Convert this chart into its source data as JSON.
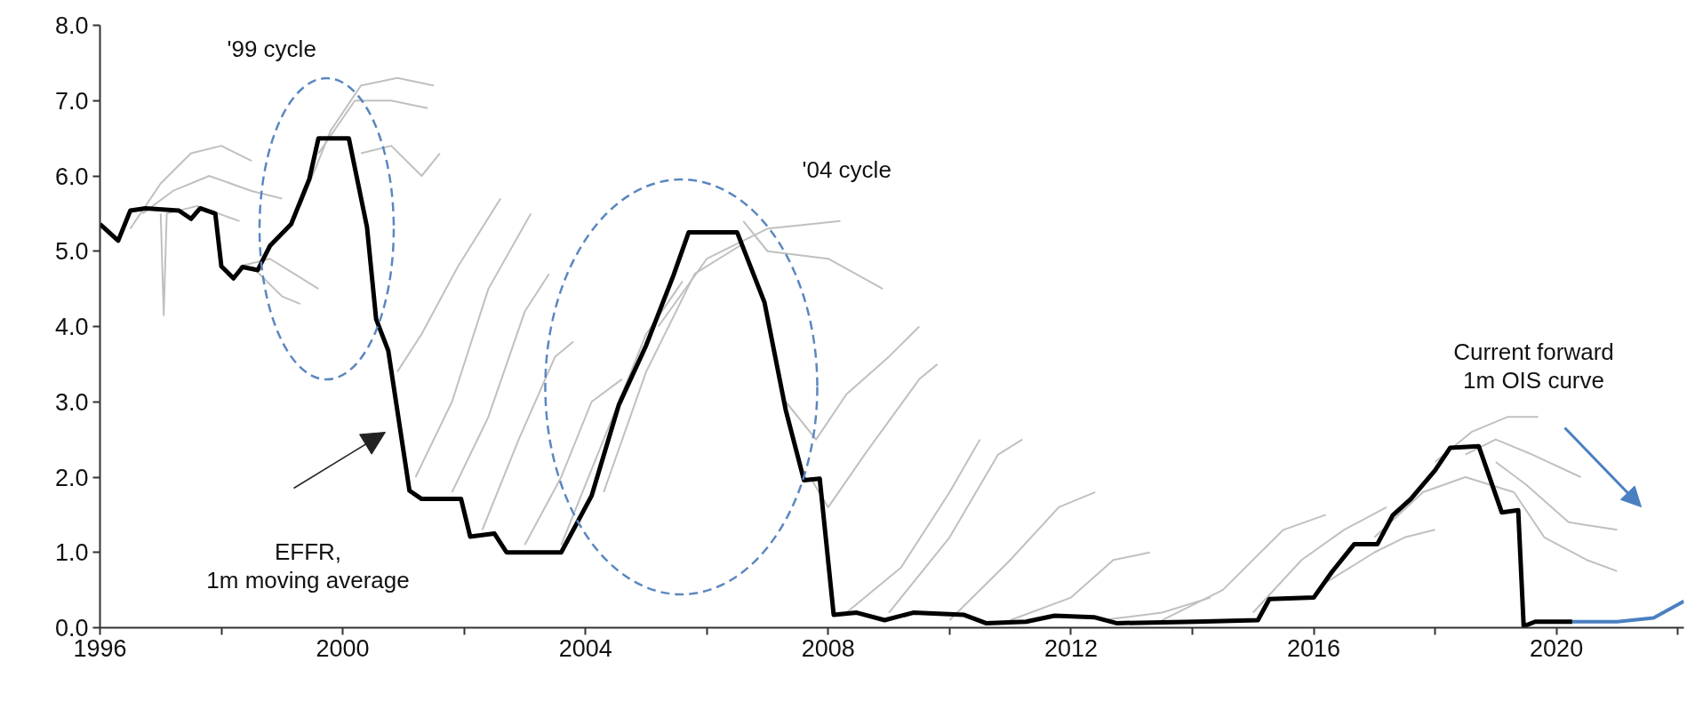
{
  "chart_data": {
    "type": "line",
    "xlim": [
      1996,
      2022.1
    ],
    "ylim": [
      0,
      8
    ],
    "xticks": [
      1996,
      {
        "value": 1998,
        "label": null
      },
      2000,
      {
        "value": 2002,
        "label": null
      },
      2004,
      {
        "value": 2006,
        "label": null
      },
      2008,
      {
        "value": 2010,
        "label": null
      },
      2012,
      {
        "value": 2014,
        "label": null
      },
      2016,
      {
        "value": 2018,
        "label": null
      },
      2020,
      {
        "value": 2022,
        "label": null
      }
    ],
    "yticks": [
      {
        "value": 0,
        "label": "0.0"
      },
      {
        "value": 1,
        "label": "1.0"
      },
      {
        "value": 2,
        "label": "2.0"
      },
      {
        "value": 3,
        "label": "3.0"
      },
      {
        "value": 4,
        "label": "4.0"
      },
      {
        "value": 5,
        "label": "5.0"
      },
      {
        "value": 6,
        "label": "6.0"
      },
      {
        "value": 7,
        "label": "7.0"
      },
      {
        "value": 8,
        "label": "8.0"
      }
    ],
    "grid": false,
    "line_style": "solid",
    "marker": "none",
    "annotations": [
      "'99 cycle",
      "'04 cycle",
      "EFFR,\n1m moving average",
      "Current forward\n1m OIS curve"
    ],
    "series": [
      {
        "color": "#c0c0c0",
        "x": [
          1996.5,
          1997,
          1997.5,
          1998,
          1998.5
        ],
        "values": [
          5.3,
          5.9,
          6.3,
          6.4,
          6.2
        ]
      },
      {
        "color": "#c0c0c0",
        "x": [
          1996.7,
          1997.2,
          1997.8,
          1998.5,
          1999
        ],
        "values": [
          5.5,
          5.8,
          6.0,
          5.8,
          5.7
        ]
      },
      {
        "color": "#c0c0c0",
        "x": [
          1997.0,
          1997.05,
          1997.1,
          1997.6,
          1998.3
        ],
        "values": [
          5.5,
          4.15,
          5.5,
          5.6,
          5.4
        ]
      },
      {
        "color": "#c0c0c0",
        "x": [
          1998.3,
          1998.8,
          1999.2,
          1999.6
        ],
        "values": [
          4.8,
          4.9,
          4.7,
          4.5
        ]
      },
      {
        "color": "#c0c0c0",
        "x": [
          1998.5,
          1999,
          1999.3
        ],
        "values": [
          4.8,
          4.4,
          4.3
        ]
      },
      {
        "color": "#c0c0c0",
        "x": [
          1999.3,
          1999.8,
          2000.3,
          2000.9,
          2001.5
        ],
        "values": [
          5.6,
          6.6,
          7.2,
          7.3,
          7.2
        ]
      },
      {
        "color": "#c0c0c0",
        "x": [
          1999.6,
          2000.2,
          2000.8,
          2001.4
        ],
        "values": [
          6.3,
          7.0,
          7.0,
          6.9
        ]
      },
      {
        "color": "#c0c0c0",
        "x": [
          2000.3,
          2000.8,
          2001.3,
          2001.6
        ],
        "values": [
          6.3,
          6.4,
          6.0,
          6.3
        ]
      },
      {
        "color": "#c0c0c0",
        "x": [
          2000.9,
          2001.3,
          2001.9,
          2002.6
        ],
        "values": [
          3.4,
          3.9,
          4.8,
          5.7
        ]
      },
      {
        "color": "#c0c0c0",
        "x": [
          2001.2,
          2001.8,
          2002.4,
          2003.1
        ],
        "values": [
          2.0,
          3.0,
          4.5,
          5.5
        ]
      },
      {
        "color": "#c0c0c0",
        "x": [
          2001.8,
          2002.4,
          2003.0,
          2003.4
        ],
        "values": [
          1.8,
          2.8,
          4.2,
          4.7
        ]
      },
      {
        "color": "#c0c0c0",
        "x": [
          2002.3,
          2002.9,
          2003.5,
          2003.8
        ],
        "values": [
          1.3,
          2.5,
          3.6,
          3.8
        ]
      },
      {
        "color": "#c0c0c0",
        "x": [
          2003.0,
          2003.6,
          2004.1,
          2004.6
        ],
        "values": [
          1.1,
          2.0,
          3.0,
          3.3
        ]
      },
      {
        "color": "#c0c0c0",
        "x": [
          2003.6,
          2004.3,
          2005.0,
          2005.6
        ],
        "values": [
          1.1,
          2.5,
          3.9,
          4.6
        ]
      },
      {
        "color": "#c0c0c0",
        "x": [
          2004.3,
          2005.0,
          2005.8,
          2006.6
        ],
        "values": [
          1.8,
          3.4,
          4.7,
          5.1
        ]
      },
      {
        "color": "#c0c0c0",
        "x": [
          2005.2,
          2006,
          2007,
          2008.2
        ],
        "values": [
          4.0,
          4.9,
          5.3,
          5.4
        ]
      },
      {
        "color": "#c0c0c0",
        "x": [
          2006.6,
          2007,
          2008,
          2008.9
        ],
        "values": [
          5.4,
          5.0,
          4.9,
          4.5
        ]
      },
      {
        "color": "#c0c0c0",
        "x": [
          2007.3,
          2007.8,
          2008.3,
          2009,
          2009.5
        ],
        "values": [
          3.0,
          2.5,
          3.1,
          3.6,
          4.0
        ]
      },
      {
        "color": "#c0c0c0",
        "x": [
          2007.7,
          2008.0,
          2008.6,
          2009.5,
          2009.8
        ],
        "values": [
          2.0,
          1.6,
          2.3,
          3.3,
          3.5
        ]
      },
      {
        "color": "#c0c0c0",
        "x": [
          2008.3,
          2009.2,
          2010,
          2010.5
        ],
        "values": [
          0.2,
          0.8,
          1.8,
          2.5
        ]
      },
      {
        "color": "#c0c0c0",
        "x": [
          2009.0,
          2010,
          2010.8,
          2011.2
        ],
        "values": [
          0.2,
          1.2,
          2.3,
          2.5
        ]
      },
      {
        "color": "#c0c0c0",
        "x": [
          2010.0,
          2011,
          2011.8,
          2012.4
        ],
        "values": [
          0.1,
          0.9,
          1.6,
          1.8
        ]
      },
      {
        "color": "#c0c0c0",
        "x": [
          2011.0,
          2012,
          2012.7,
          2013.3
        ],
        "values": [
          0.1,
          0.4,
          0.9,
          1.0
        ]
      },
      {
        "color": "#c0c0c0",
        "x": [
          2012.5,
          2013.5,
          2014.3
        ],
        "values": [
          0.1,
          0.2,
          0.4
        ]
      },
      {
        "color": "#c0c0c0",
        "x": [
          2013.5,
          2014.5,
          2015.5,
          2016.2
        ],
        "values": [
          0.1,
          0.5,
          1.3,
          1.5
        ]
      },
      {
        "color": "#c0c0c0",
        "x": [
          2015.0,
          2015.8,
          2016.5,
          2017.2
        ],
        "values": [
          0.2,
          0.9,
          1.3,
          1.6
        ]
      },
      {
        "color": "#c0c0c0",
        "x": [
          2016.2,
          2017,
          2017.5,
          2018.0
        ],
        "values": [
          0.6,
          1.0,
          1.2,
          1.3
        ]
      },
      {
        "color": "#c0c0c0",
        "x": [
          2017.0,
          2017.8,
          2018.5,
          2019.3
        ],
        "values": [
          1.2,
          1.8,
          2.0,
          1.8
        ]
      },
      {
        "color": "#c0c0c0",
        "x": [
          2018.0,
          2018.6,
          2019.2,
          2019.7
        ],
        "values": [
          2.2,
          2.6,
          2.8,
          2.8
        ]
      },
      {
        "color": "#c0c0c0",
        "x": [
          2018.5,
          2019.0,
          2019.6,
          2020.4
        ],
        "values": [
          2.3,
          2.5,
          2.3,
          2.0
        ]
      },
      {
        "color": "#c0c0c0",
        "x": [
          2019.0,
          2019.5,
          2020.2,
          2021.0
        ],
        "values": [
          2.2,
          1.9,
          1.4,
          1.3
        ]
      },
      {
        "color": "#c0c0c0",
        "x": [
          2019.3,
          2019.8,
          2020.5,
          2021.0
        ],
        "values": [
          1.8,
          1.2,
          0.9,
          0.75
        ]
      },
      {
        "color": "#000000",
        "x": [
          1996,
          1996.3,
          1996.5,
          1996.75,
          1997.3,
          1997.5,
          1997.65,
          1997.9,
          1998.0,
          1998.2,
          1998.35,
          1998.6,
          1998.8,
          1999.15,
          1999.45,
          1999.6,
          2000.1,
          2000.4,
          2000.55,
          2000.75,
          2001.1,
          2001.3,
          2001.95,
          2002.1,
          2002.5,
          2002.7,
          2003.6,
          2004.1,
          2004.55,
          2005.0,
          2005.45,
          2005.7,
          2006.5,
          2006.95,
          2007.3,
          2007.6,
          2007.86,
          2008.09,
          2008.47,
          2008.93,
          2009.4,
          2010.24,
          2010.6,
          2011.26,
          2011.73,
          2012.38,
          2012.75,
          2014.06,
          2015.08,
          2015.27,
          2016.0,
          2016.3,
          2016.67,
          2017.05,
          2017.3,
          2017.6,
          2018.0,
          2018.25,
          2018.72,
          2019.1,
          2019.37,
          2019.46,
          2019.65,
          2020.26
        ],
        "values": [
          5.36,
          5.14,
          5.54,
          5.57,
          5.54,
          5.43,
          5.57,
          5.5,
          4.8,
          4.64,
          4.79,
          4.75,
          5.07,
          5.36,
          5.96,
          6.5,
          6.5,
          5.32,
          4.1,
          3.68,
          1.82,
          1.71,
          1.71,
          1.21,
          1.25,
          1.0,
          1.0,
          1.75,
          2.96,
          3.75,
          4.68,
          5.25,
          5.25,
          4.32,
          2.89,
          1.96,
          1.98,
          0.17,
          0.2,
          0.1,
          0.2,
          0.17,
          0.06,
          0.08,
          0.16,
          0.14,
          0.06,
          0.08,
          0.1,
          0.38,
          0.4,
          0.74,
          1.11,
          1.11,
          1.49,
          1.71,
          2.09,
          2.39,
          2.41,
          1.53,
          1.56,
          0.02,
          0.08,
          0.08
        ]
      },
      {
        "color": "#4a7fc1",
        "x": [
          2020.26,
          2021.0,
          2021.6,
          2022.1
        ],
        "values": [
          0.08,
          0.08,
          0.13,
          0.35
        ]
      }
    ]
  }
}
